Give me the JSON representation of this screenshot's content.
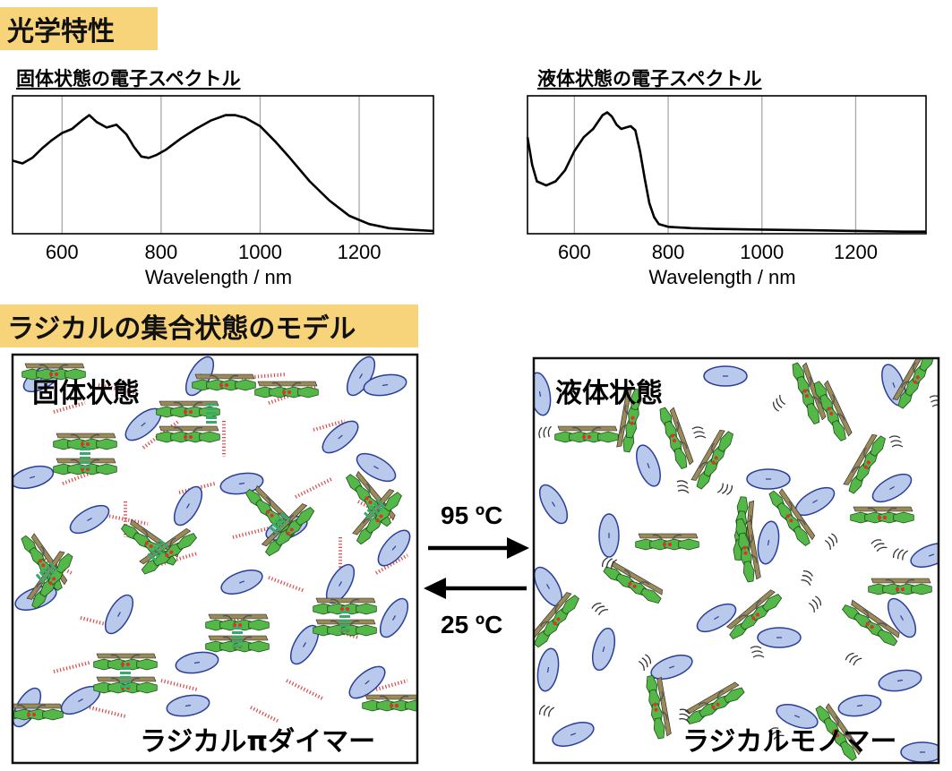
{
  "headings": {
    "optical": "光学特性",
    "model": "ラジカルの集合状態のモデル"
  },
  "spectra": [
    {
      "title": "固体状態の電子スペクトル",
      "xlabel": "Wavelength / nm",
      "ticks": [
        "600",
        "800",
        "1000",
        "1200"
      ]
    },
    {
      "title": "液体状態の電子スペクトル",
      "xlabel": "Wavelength / nm",
      "ticks": [
        "600",
        "800",
        "1000",
        "1200"
      ]
    }
  ],
  "chart_data": [
    {
      "type": "line",
      "title": "固体状態の電子スペクトル",
      "xlabel": "Wavelength / nm",
      "ylabel": "",
      "xlim": [
        500,
        1350
      ],
      "ylim": [
        0,
        1
      ],
      "grid": true,
      "xticks": [
        600,
        800,
        1000,
        1200
      ],
      "x": [
        500,
        520,
        540,
        560,
        580,
        600,
        620,
        640,
        655,
        670,
        690,
        710,
        730,
        745,
        760,
        775,
        790,
        810,
        840,
        870,
        900,
        930,
        950,
        970,
        1000,
        1030,
        1060,
        1100,
        1140,
        1180,
        1220,
        1260,
        1300,
        1350
      ],
      "y": [
        0.53,
        0.51,
        0.55,
        0.62,
        0.68,
        0.73,
        0.76,
        0.82,
        0.86,
        0.81,
        0.77,
        0.79,
        0.72,
        0.63,
        0.56,
        0.55,
        0.57,
        0.61,
        0.69,
        0.76,
        0.82,
        0.86,
        0.86,
        0.84,
        0.78,
        0.67,
        0.55,
        0.38,
        0.24,
        0.13,
        0.07,
        0.04,
        0.03,
        0.02
      ]
    },
    {
      "type": "line",
      "title": "液体状態の電子スペクトル",
      "xlabel": "Wavelength / nm",
      "ylabel": "",
      "xlim": [
        500,
        1350
      ],
      "ylim": [
        0,
        1
      ],
      "grid": true,
      "xticks": [
        600,
        800,
        1000,
        1200
      ],
      "x": [
        500,
        510,
        520,
        540,
        560,
        580,
        600,
        620,
        640,
        660,
        670,
        680,
        690,
        700,
        710,
        720,
        730,
        740,
        750,
        760,
        770,
        780,
        800,
        850,
        900,
        1000,
        1100,
        1200,
        1300,
        1350
      ],
      "y": [
        0.7,
        0.5,
        0.38,
        0.35,
        0.38,
        0.46,
        0.6,
        0.7,
        0.76,
        0.86,
        0.88,
        0.85,
        0.79,
        0.76,
        0.77,
        0.78,
        0.75,
        0.6,
        0.4,
        0.22,
        0.12,
        0.07,
        0.05,
        0.04,
        0.035,
        0.03,
        0.025,
        0.02,
        0.015,
        0.015
      ]
    }
  ],
  "model": {
    "solid": {
      "label": "固体状態",
      "caption": "ラジカルπダイマー"
    },
    "liquid": {
      "label": "液体状態",
      "caption": "ラジカルモノマー"
    },
    "heat_arrow": "95 ºC",
    "cool_arrow": "25 ºC"
  },
  "colors": {
    "banner": "#f7d37a",
    "molecule": "#54b848",
    "ellipse": "#b8c9ec",
    "ellipse_edge": "#2b3f96",
    "contact": "#d94a4a",
    "stack": "#3aaa6a"
  },
  "glyphs": {
    "arrow_right": "heat-arrow-right",
    "arrow_left": "cool-arrow-left"
  }
}
